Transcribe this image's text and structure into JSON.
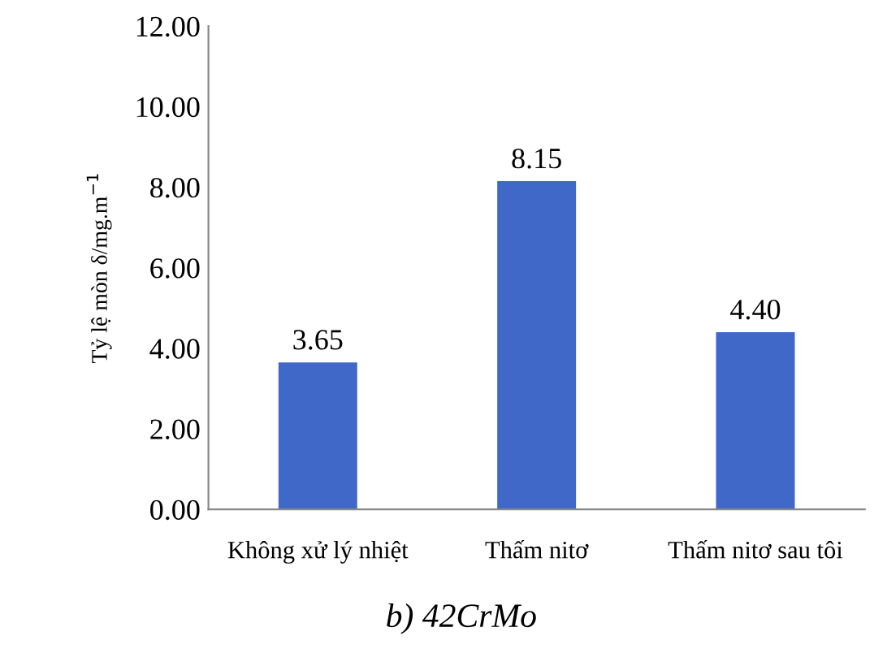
{
  "chart_data": {
    "type": "bar",
    "ylabel": "Tỷ lệ mòn δ/mg.m$^{−1}$",
    "categories": [
      "Không xử lý nhiệt",
      "Thấm nitơ",
      "Thấm nitơ sau tôi"
    ],
    "values": [
      3.65,
      8.15,
      4.4
    ],
    "color": "#3f68c8",
    "value_labels": [
      "3.65",
      "8.15",
      "4.40"
    ],
    "ylim": [
      0,
      12
    ],
    "yticks": [
      {
        "value": 0,
        "label": "0.00"
      },
      {
        "value": 2,
        "label": "2.00"
      },
      {
        "value": 4,
        "label": "4.00"
      },
      {
        "value": 6,
        "label": "6.00"
      },
      {
        "value": 8,
        "label": "8.00"
      },
      {
        "value": 10,
        "label": "10.00"
      },
      {
        "value": 12,
        "label": "12.00"
      }
    ],
    "grid": false,
    "annotations": [
      "b) 42CrMo"
    ]
  }
}
